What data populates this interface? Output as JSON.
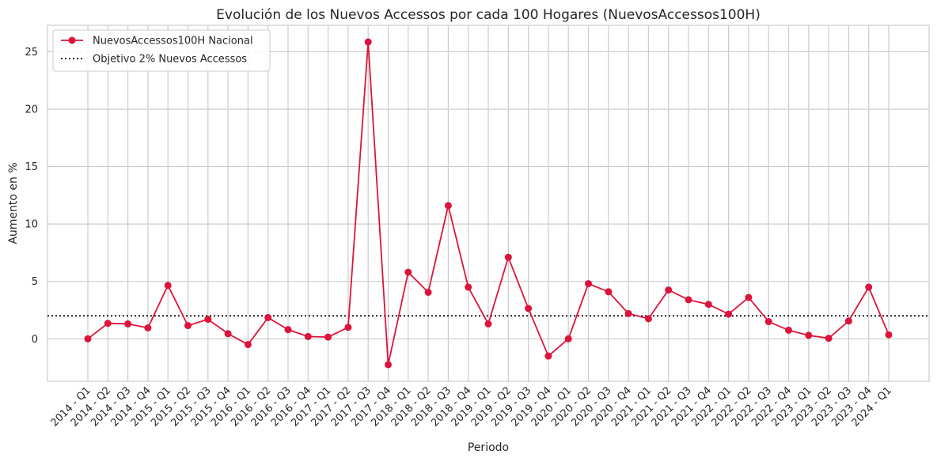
{
  "chart_data": {
    "type": "line",
    "title": "Evolución de los Nuevos Accessos por cada 100 Hogares (NuevosAccessos100H)",
    "xlabel": "Periodo",
    "ylabel": "Aumento en %",
    "categories": [
      "2014 - Q1",
      "2014 - Q2",
      "2014 - Q3",
      "2014 - Q4",
      "2015 - Q1",
      "2015 - Q2",
      "2015 - Q3",
      "2015 - Q4",
      "2016 - Q1",
      "2016 - Q2",
      "2016 - Q3",
      "2016 - Q4",
      "2017 - Q1",
      "2017 - Q2",
      "2017 - Q3",
      "2017 - Q4",
      "2018 - Q1",
      "2018 - Q2",
      "2018 - Q3",
      "2018 - Q4",
      "2019 - Q1",
      "2019 - Q2",
      "2019 - Q3",
      "2019 - Q4",
      "2020 - Q1",
      "2020 - Q2",
      "2020 - Q3",
      "2020 - Q4",
      "2021 - Q1",
      "2021 - Q2",
      "2021 - Q3",
      "2021 - Q4",
      "2022 - Q1",
      "2022 - Q2",
      "2022 - Q3",
      "2022 - Q4",
      "2023 - Q1",
      "2023 - Q2",
      "2023 - Q3",
      "2023 - Q4",
      "2024 - Q1"
    ],
    "series": [
      {
        "name": "NuevosAccessos100H Nacional",
        "color": "#dc143c",
        "values": [
          0.0,
          1.35,
          1.3,
          0.95,
          4.65,
          1.15,
          1.7,
          0.45,
          -0.5,
          1.85,
          0.8,
          0.2,
          0.15,
          1.0,
          25.85,
          -2.25,
          5.8,
          4.05,
          11.6,
          4.5,
          1.3,
          7.1,
          2.65,
          -1.5,
          0.0,
          4.8,
          4.1,
          2.2,
          1.75,
          4.25,
          3.4,
          3.0,
          2.15,
          3.6,
          1.5,
          0.75,
          0.3,
          0.05,
          1.55,
          4.5,
          0.35
        ]
      }
    ],
    "reference_line": {
      "name": "Objetivo 2% Nuevos Accessos",
      "value": 2,
      "color": "#000000",
      "style": "dotted"
    },
    "yticks": [
      0,
      5,
      10,
      15,
      20,
      25
    ],
    "ylim": [
      -3.7,
      27.3
    ],
    "grid": true,
    "legend_position": "top-left"
  }
}
